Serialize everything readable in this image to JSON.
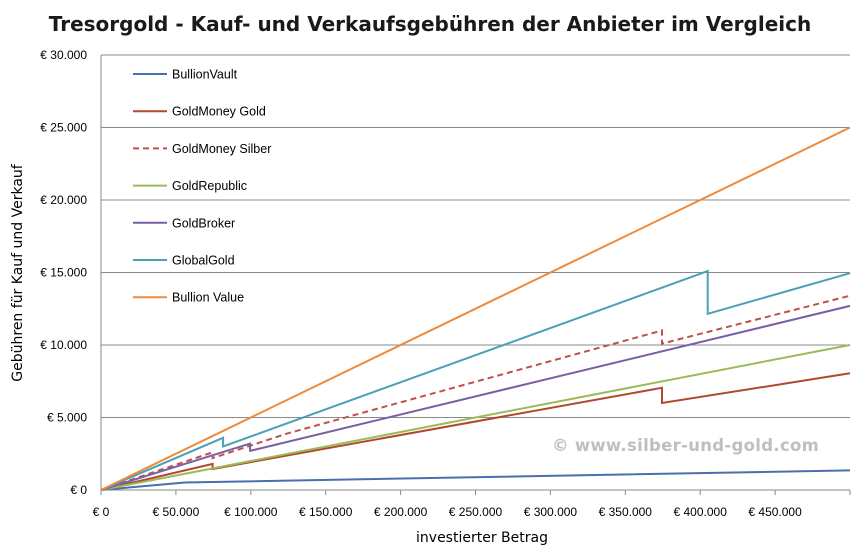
{
  "chart_data": {
    "type": "line",
    "title": "Tresorgold - Kauf- und Verkaufsgebühren der Anbieter im Vergleich",
    "xlabel": "investierter Betrag",
    "ylabel": "Gebühren für Kauf und Verkauf",
    "xlim": [
      0,
      500000
    ],
    "ylim": [
      0,
      30000
    ],
    "x_ticks": [
      0,
      50000,
      100000,
      150000,
      200000,
      250000,
      300000,
      350000,
      400000,
      450000
    ],
    "x_tick_labels": [
      "€ 0",
      "€ 50.000",
      "€ 100.000",
      "€ 150.000",
      "€ 200.000",
      "€ 250.000",
      "€ 300.000",
      "€ 350.000",
      "€ 400.000",
      "€ 450.000"
    ],
    "y_ticks": [
      0,
      5000,
      10000,
      15000,
      20000,
      25000,
      30000
    ],
    "y_tick_labels": [
      "€ 0",
      "€ 5.000",
      "€ 10.000",
      "€ 15.000",
      "€ 20.000",
      "€ 25.000",
      "€ 30.000"
    ],
    "grid": "horizontal",
    "legend_position": "top-left",
    "series": [
      {
        "name": "BullionVault",
        "color": "#4a6fb1",
        "dash": false,
        "points": [
          [
            0,
            0
          ],
          [
            56000,
            520
          ],
          [
            500000,
            1350
          ]
        ]
      },
      {
        "name": "GoldMoney Gold",
        "color": "#b1482f",
        "dash": false,
        "points": [
          [
            0,
            0
          ],
          [
            74500,
            1800
          ],
          [
            74500,
            1450
          ],
          [
            374500,
            7050
          ],
          [
            374500,
            6000
          ],
          [
            500000,
            8050
          ]
        ]
      },
      {
        "name": "GoldMoney Silber",
        "color": "#c0504d",
        "dash": true,
        "points": [
          [
            0,
            0
          ],
          [
            74500,
            2600
          ],
          [
            74500,
            2200
          ],
          [
            124500,
            3900
          ],
          [
            374500,
            11000
          ],
          [
            374500,
            10100
          ],
          [
            500000,
            13400
          ]
        ]
      },
      {
        "name": "GoldRepublic",
        "color": "#9bbb59",
        "dash": false,
        "points": [
          [
            0,
            0
          ],
          [
            500000,
            10000
          ]
        ]
      },
      {
        "name": "GoldBroker",
        "color": "#7a5fa3",
        "dash": false,
        "points": [
          [
            0,
            0
          ],
          [
            99500,
            3200
          ],
          [
            99500,
            2700
          ],
          [
            500000,
            12700
          ]
        ]
      },
      {
        "name": "GlobalGold",
        "color": "#4aa0b5",
        "dash": false,
        "points": [
          [
            0,
            0
          ],
          [
            81500,
            3600
          ],
          [
            81500,
            3000
          ],
          [
            405000,
            15100
          ],
          [
            405000,
            12150
          ],
          [
            500000,
            14950
          ]
        ]
      },
      {
        "name": "Bullion Value",
        "color": "#ee8a3a",
        "dash": false,
        "points": [
          [
            0,
            0
          ],
          [
            500000,
            25000
          ]
        ]
      }
    ]
  },
  "watermark": "© www.silber-und-gold.com"
}
